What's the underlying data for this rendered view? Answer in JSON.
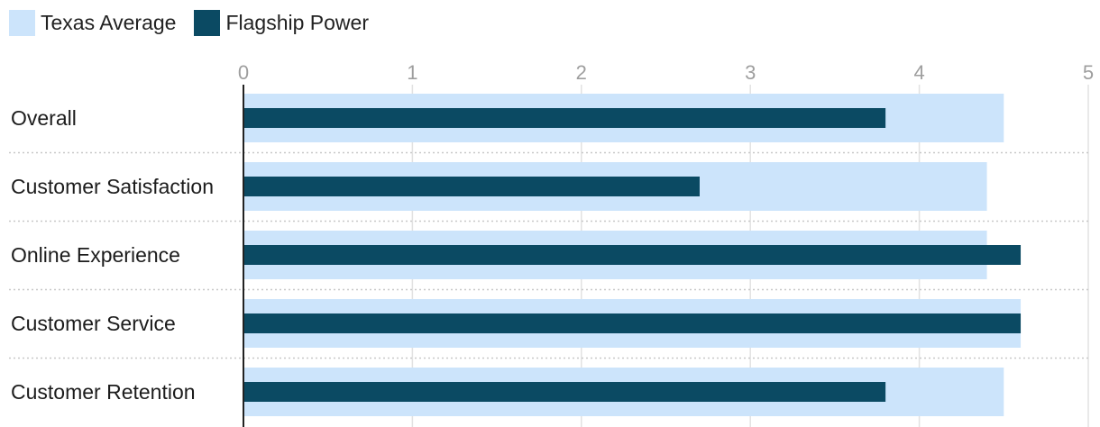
{
  "legend": {
    "items": [
      {
        "name": "Texas Average",
        "color": "#cce4fb"
      },
      {
        "name": "Flagship Power",
        "color": "#0b4a63"
      }
    ]
  },
  "chart_data": {
    "type": "bar",
    "orientation": "horizontal",
    "categories": [
      "Overall",
      "Customer Satisfaction",
      "Online Experience",
      "Customer Service",
      "Customer Retention"
    ],
    "series": [
      {
        "name": "Texas Average",
        "color": "#cce4fb",
        "values": [
          4.5,
          4.4,
          4.4,
          4.6,
          4.5
        ]
      },
      {
        "name": "Flagship Power",
        "color": "#0b4a63",
        "values": [
          3.8,
          2.7,
          4.6,
          4.6,
          3.8
        ]
      }
    ],
    "x_ticks": [
      "0",
      "1",
      "2",
      "3",
      "4",
      "5"
    ],
    "xlim": [
      0,
      5
    ],
    "grid": true,
    "legend_position": "top-left"
  }
}
